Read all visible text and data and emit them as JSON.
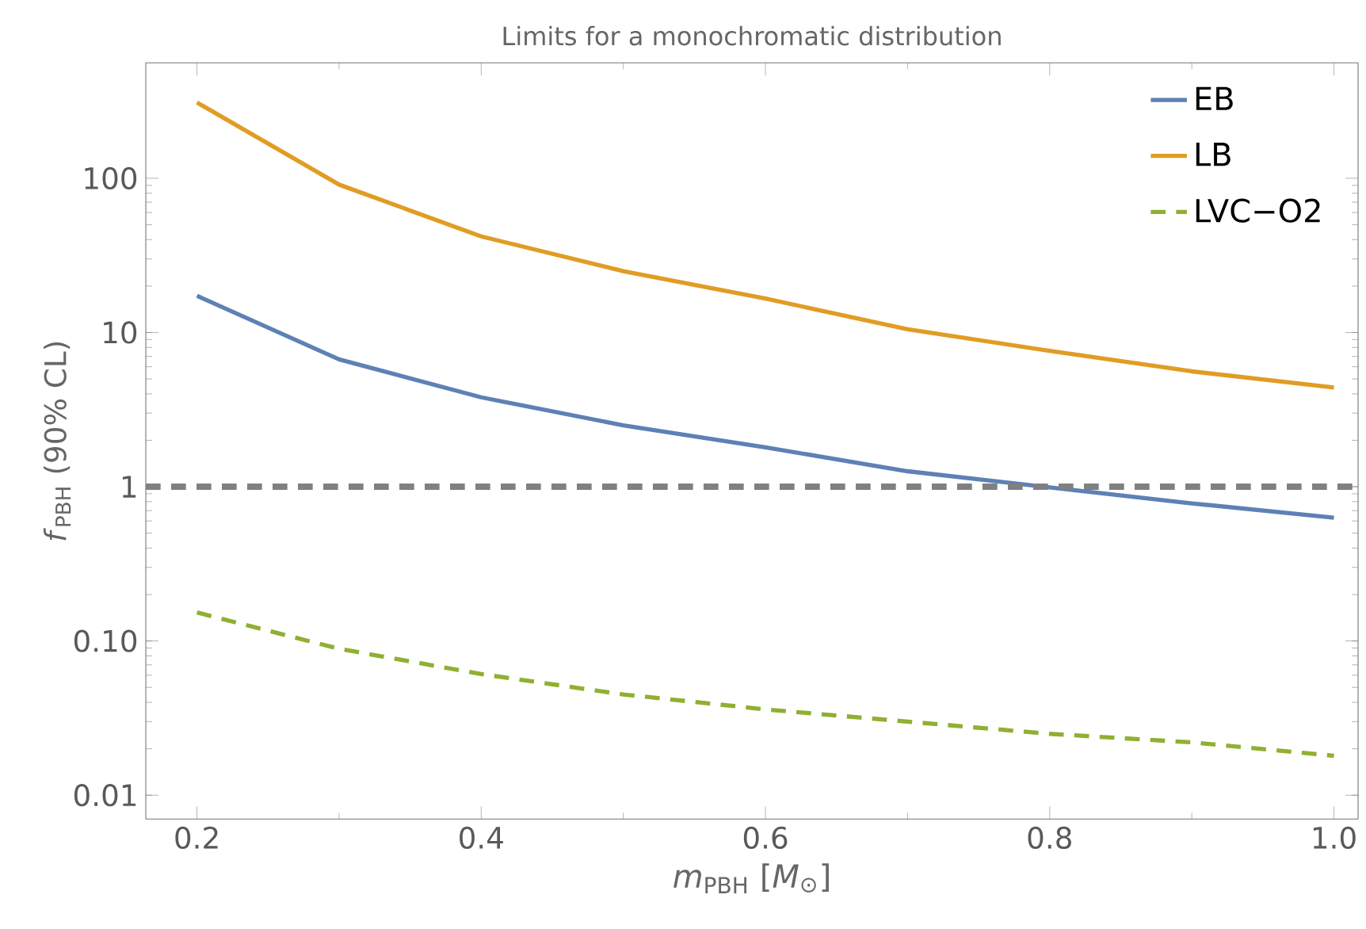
{
  "chart_data": {
    "type": "line",
    "title": "Limits for a monochromatic distribution",
    "xlabel": "*m*$_{PBH}$ [*M*$_{⊙}$]",
    "ylabel": "*f*$_{PBH}$ (90% CL)",
    "x": [
      0.2,
      0.3,
      0.4,
      0.5,
      0.6,
      0.7,
      0.8,
      0.9,
      1.0
    ],
    "series": [
      {
        "name": "EB",
        "color": "#5e81b5",
        "line_style": "solid",
        "values": [
          17.3,
          6.7,
          3.8,
          2.5,
          1.8,
          1.26,
          0.99,
          0.78,
          0.63
        ]
      },
      {
        "name": "LB",
        "color": "#e19c24",
        "line_style": "solid",
        "values": [
          310,
          91,
          42,
          25,
          16.6,
          10.5,
          7.6,
          5.6,
          4.4
        ]
      },
      {
        "name": "LVC−O2",
        "color": "#8fb032",
        "line_style": "dashed",
        "values": [
          0.153,
          0.089,
          0.061,
          0.045,
          0.036,
          0.03,
          0.025,
          0.022,
          0.018
        ]
      }
    ],
    "log": "y",
    "xlim": [
      0.164,
      1.017
    ],
    "ylim": [
      0.007,
      560
    ],
    "xticks": [
      0.2,
      0.4,
      0.6,
      0.8,
      {
        "value": 1,
        "label": "1.0"
      }
    ],
    "yticks": [
      0.01,
      {
        "value": 0.1,
        "label": "0.10"
      },
      1,
      10,
      100
    ],
    "ref_lines": [
      {
        "axis": "y",
        "value": 1,
        "color": "#808080",
        "line_style": "dashed"
      }
    ],
    "legend": "top right",
    "grid": false
  }
}
